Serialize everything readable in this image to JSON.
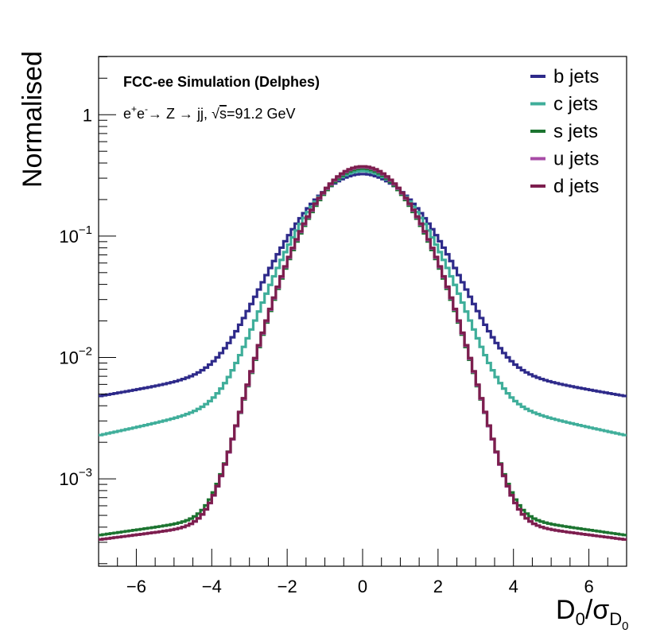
{
  "chart_data": {
    "type": "line",
    "title": "FCC-ee Simulation (Delphes)",
    "subtitle": {
      "prefix": "e",
      "sup1": "+",
      "mid1": "e",
      "sup2": "-",
      "arrow1": "→",
      "z": " Z ",
      "arrow2": "→",
      "jj": " jj, ",
      "sqrt": "√",
      "s": "s",
      "rest": "=91.2 GeV"
    },
    "xlabel": {
      "main": "D",
      "sub0": "0",
      "slash": "/σ",
      "subD": "D",
      "subsub": "0"
    },
    "ylabel": "Normalised",
    "xlim": [
      -7,
      7
    ],
    "ylim_log10": [
      -3.72,
      0.48
    ],
    "yscale": "log",
    "bins": 140,
    "x_ticks": [
      -6,
      -4,
      -2,
      0,
      2,
      4,
      6
    ],
    "x_tick_labels": [
      "−6",
      "−4",
      "−2",
      "0",
      "2",
      "4",
      "6"
    ],
    "y_ticks": [
      {
        "base": "10",
        "exp": "−3",
        "value": 0.001
      },
      {
        "base": "10",
        "exp": "−2",
        "value": 0.01
      },
      {
        "base": "10",
        "exp": "−1",
        "value": 0.1
      },
      {
        "base": "1",
        "exp": "",
        "value": 1
      }
    ],
    "legend_position": "top-right",
    "series": [
      {
        "name": "b jets",
        "color": "#2e2a8a",
        "peak": 0.31,
        "sigma": 1.25,
        "tail": 0.015,
        "tail_slope": 0.038,
        "tail_curv": 0.2
      },
      {
        "name": "c jets",
        "color": "#3fae9a",
        "peak": 0.335,
        "sigma": 1.15,
        "tail": 0.0088,
        "tail_slope": 0.068,
        "tail_curv": 0.2
      },
      {
        "name": "s jets",
        "color": "#1c7430",
        "peak": 0.36,
        "sigma": 1.05,
        "tail": 0.0007,
        "tail_slope": 0.102,
        "tail_curv": 0.0
      },
      {
        "name": "u jets",
        "color": "#a74ba6",
        "peak": 0.37,
        "sigma": 1.05,
        "tail": 0.0006,
        "tail_slope": 0.092,
        "tail_curv": 0.0
      },
      {
        "name": "d jets",
        "color": "#7d1e4e",
        "peak": 0.375,
        "sigma": 1.05,
        "tail": 0.0006,
        "tail_slope": 0.092,
        "tail_curv": 0.0
      }
    ]
  }
}
